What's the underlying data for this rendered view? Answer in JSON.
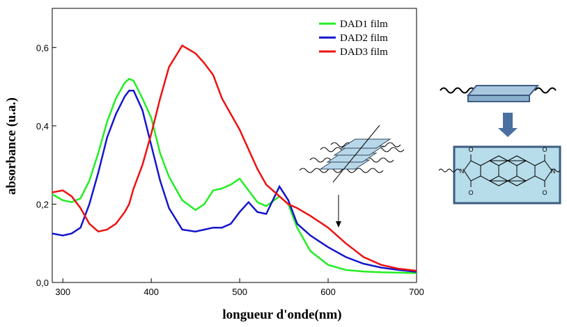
{
  "chart_data": {
    "type": "line",
    "xlabel": "longueur d'onde(nm)",
    "ylabel": "absorbance (u.a.)",
    "x": [
      288,
      300,
      310,
      320,
      330,
      340,
      350,
      360,
      370,
      375,
      380,
      390,
      400,
      410,
      420,
      435,
      450,
      460,
      470,
      480,
      490,
      500,
      510,
      520,
      530,
      545,
      555,
      565,
      580,
      600,
      620,
      640,
      660,
      680,
      700
    ],
    "series": [
      {
        "name": "DAD1 film",
        "color": "#22ee22",
        "values": [
          0.225,
          0.21,
          0.205,
          0.215,
          0.26,
          0.33,
          0.41,
          0.47,
          0.51,
          0.52,
          0.515,
          0.47,
          0.42,
          0.33,
          0.27,
          0.21,
          0.185,
          0.2,
          0.235,
          0.24,
          0.25,
          0.265,
          0.235,
          0.205,
          0.195,
          0.22,
          0.2,
          0.14,
          0.08,
          0.045,
          0.032,
          0.028,
          0.026,
          0.025,
          0.024
        ]
      },
      {
        "name": "DAD2 film",
        "color": "#1515cc",
        "values": [
          0.125,
          0.12,
          0.125,
          0.14,
          0.2,
          0.28,
          0.37,
          0.43,
          0.475,
          0.49,
          0.49,
          0.44,
          0.35,
          0.26,
          0.19,
          0.135,
          0.13,
          0.135,
          0.14,
          0.14,
          0.15,
          0.18,
          0.205,
          0.18,
          0.175,
          0.245,
          0.21,
          0.15,
          0.12,
          0.09,
          0.065,
          0.048,
          0.038,
          0.032,
          0.027
        ]
      },
      {
        "name": "DAD3 film",
        "color": "#ee1111",
        "values": [
          0.23,
          0.235,
          0.22,
          0.19,
          0.15,
          0.13,
          0.135,
          0.15,
          0.18,
          0.2,
          0.24,
          0.3,
          0.38,
          0.47,
          0.55,
          0.605,
          0.585,
          0.56,
          0.53,
          0.47,
          0.43,
          0.39,
          0.34,
          0.29,
          0.25,
          0.22,
          0.2,
          0.19,
          0.17,
          0.14,
          0.1,
          0.065,
          0.045,
          0.035,
          0.03
        ]
      }
    ],
    "xlim": [
      288,
      700
    ],
    "xticks": [
      300,
      400,
      500,
      600,
      700
    ],
    "ylim": [
      0,
      0.7
    ],
    "yticks": [
      {
        "value": 0,
        "label": "0,0"
      },
      {
        "value": 0.2,
        "label": "0,2"
      },
      {
        "value": 0.4,
        "label": "0,4"
      },
      {
        "value": 0.6,
        "label": "0,6"
      }
    ],
    "legend": "upper right",
    "molecule_labels": [
      "O",
      "O",
      "N",
      "N",
      "O",
      "O"
    ]
  }
}
